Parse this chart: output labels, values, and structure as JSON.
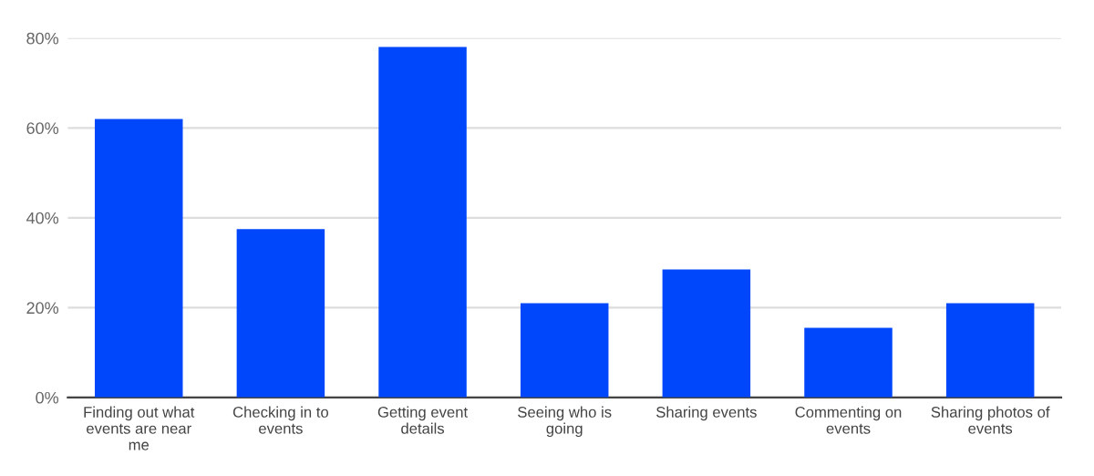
{
  "chart_data": {
    "type": "bar",
    "categories": [
      "Finding out what events are near me",
      "Checking in to events",
      "Getting event details",
      "Seeing who is going",
      "Sharing events",
      "Commenting on events",
      "Sharing photos of events"
    ],
    "values": [
      62,
      37.5,
      78,
      21,
      28.5,
      15.5,
      21
    ],
    "color": "#0047fb",
    "ylim": [
      0,
      80
    ],
    "yticks": [
      {
        "value": 0,
        "label": "0%"
      },
      {
        "value": 20,
        "label": "20%"
      },
      {
        "value": 40,
        "label": "40%"
      },
      {
        "value": 60,
        "label": "60%"
      },
      {
        "value": 80,
        "label": "80%"
      }
    ],
    "grid": "y",
    "legend": false
  }
}
